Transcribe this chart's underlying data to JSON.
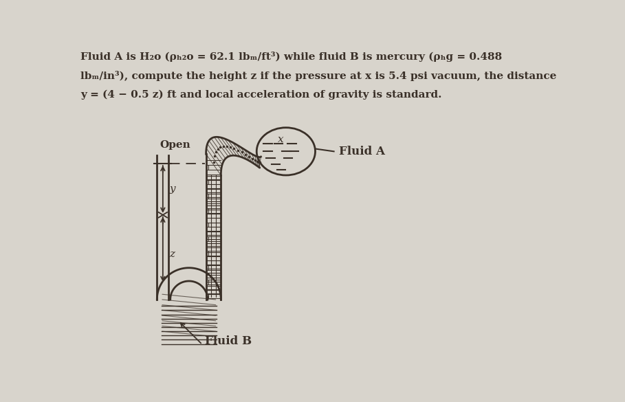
{
  "bg_color": "#d8d4cc",
  "text_color": "#3a3028",
  "title_line1": "Fluid A is H₂o (ρₕ₂o = 62.1 lbₘ/ft³) while fluid B is mercury (ρₕg = 0.488",
  "title_line2": "lbₘ/in³), compute the height z if the pressure at x is 5.4 psi vacuum, the distance",
  "title_line3": "y = (4 − 0.5 z) ft and local acceleration of gravity is standard.",
  "label_open": "Open",
  "label_fluid_a": "Fluid A",
  "label_fluid_b": "Fluid B",
  "label_x": "x",
  "label_y": "y",
  "label_z": "z",
  "lw_tube": 2.0,
  "lw_thin": 1.2
}
